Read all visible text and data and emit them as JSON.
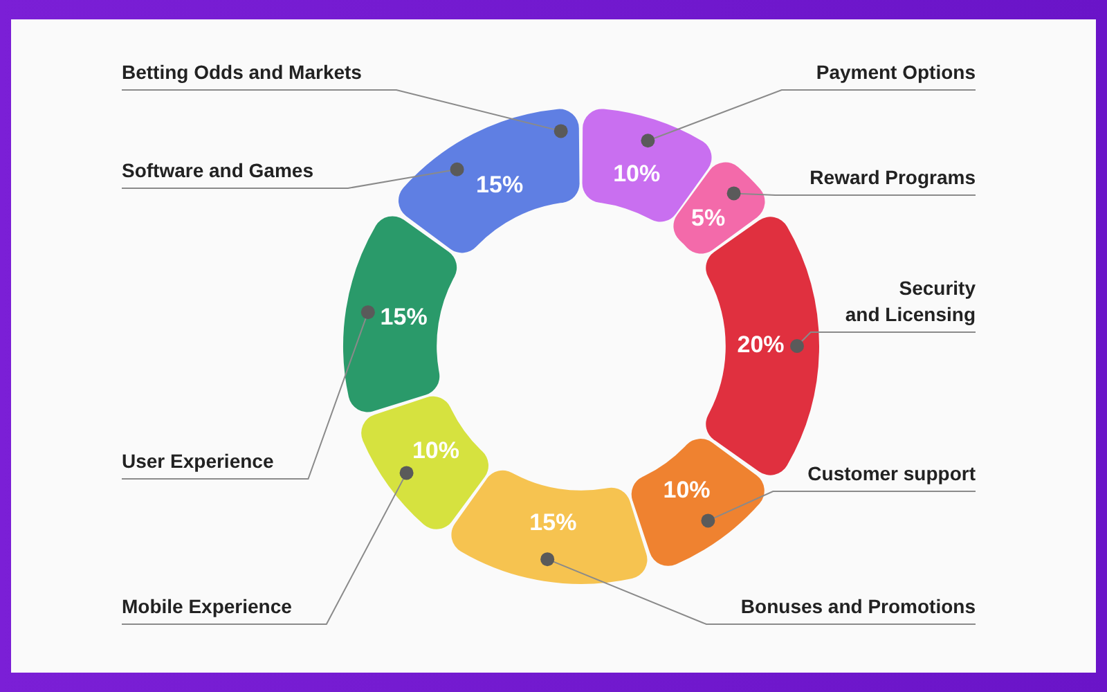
{
  "chart_data": {
    "type": "donut",
    "categories": [
      "Payment Options",
      "Reward Programs",
      "Security and Licensing",
      "Customer support",
      "Bonuses and Promotions",
      "Mobile Experience",
      "User Experience",
      "Software and Games"
    ],
    "values": [
      10,
      5,
      20,
      10,
      15,
      10,
      15,
      15
    ],
    "value_labels": [
      "10%",
      "5%",
      "20%",
      "10%",
      "15%",
      "10%",
      "15%",
      "15%"
    ],
    "colors": [
      "#c96ff0",
      "#f36aaa",
      "#e0303f",
      "#ef8230",
      "#f6c350",
      "#d6e23f",
      "#2a9a6a",
      "#5f7fe3"
    ],
    "annotations": [
      "Betting Odds and Markets"
    ],
    "legend": false
  }
}
